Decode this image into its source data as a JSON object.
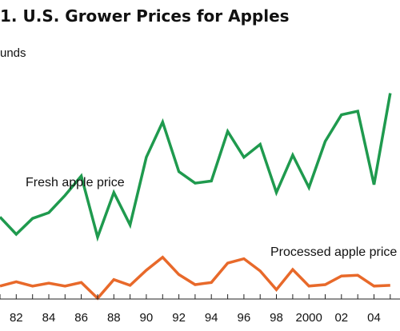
{
  "title": "1.  U.S. Grower Prices for Apples",
  "unit_label": "unds",
  "colors": {
    "fresh": "#1f9a4e",
    "processed": "#e8692a",
    "text": "#111111",
    "axis": "#222222"
  },
  "chart_data": {
    "type": "line",
    "title": "1.  U.S. Grower Prices for Apples",
    "ylabel": "unds",
    "xlabel": "",
    "grid": false,
    "x": [
      1981,
      1982,
      1983,
      1984,
      1985,
      1986,
      1987,
      1988,
      1989,
      1990,
      1991,
      1992,
      1993,
      1994,
      1995,
      1996,
      1997,
      1998,
      1999,
      2000,
      2001,
      2002,
      2003,
      2004,
      2005
    ],
    "xlim": [
      1981,
      2005.6
    ],
    "ylim": [
      0,
      40
    ],
    "tick_values": [
      1982,
      1984,
      1986,
      1988,
      1990,
      1992,
      1994,
      1996,
      1998,
      2000,
      2002,
      2004
    ],
    "tick_labels": [
      "82",
      "84",
      "86",
      "88",
      "90",
      "92",
      "94",
      "96",
      "98",
      "2000",
      "02",
      "04"
    ],
    "series": [
      {
        "name": "Fresh apple price",
        "key": "fresh",
        "values": [
          11.4,
          9.0,
          11.2,
          12.0,
          14.4,
          17.1,
          8.6,
          14.8,
          10.3,
          19.7,
          24.6,
          17.7,
          16.1,
          16.4,
          23.3,
          19.7,
          21.5,
          14.8,
          20.0,
          15.5,
          21.9,
          25.6,
          26.1,
          15.9,
          28.6
        ]
      },
      {
        "name": "Processed apple price",
        "key": "processed",
        "values": [
          1.8,
          2.4,
          1.8,
          2.2,
          1.8,
          2.3,
          0.1,
          2.7,
          1.9,
          4.0,
          5.8,
          3.4,
          2.0,
          2.3,
          5.0,
          5.6,
          3.9,
          1.3,
          4.1,
          1.8,
          2.0,
          3.2,
          3.3,
          1.8,
          1.9
        ]
      }
    ],
    "annotations": [
      {
        "text": "Fresh apple price",
        "series": "fresh"
      },
      {
        "text": "Processed apple price",
        "series": "processed"
      }
    ]
  }
}
